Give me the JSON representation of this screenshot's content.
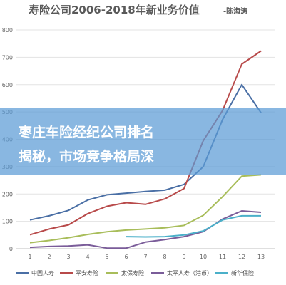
{
  "chart_data": {
    "type": "line",
    "title": "寿险公司2006-2018年新业务价值",
    "subtitle": "-陈海涛",
    "x": [
      1,
      2,
      3,
      4,
      5,
      6,
      7,
      8,
      9,
      10,
      11,
      12,
      13
    ],
    "ylim": [
      0,
      800
    ],
    "yticks": [
      0,
      100,
      200,
      300,
      400,
      500,
      600,
      700,
      800
    ],
    "grid": true,
    "legend_position": "bottom",
    "series": [
      {
        "name": "中国人寿",
        "color": "#4a6fa5",
        "values": [
          105,
          120,
          140,
          178,
          197,
          203,
          209,
          214,
          235,
          300,
          472,
          600,
          497
        ]
      },
      {
        "name": "平安寿险",
        "color": "#b84a4a",
        "values": [
          51,
          72,
          87,
          128,
          155,
          168,
          162,
          182,
          220,
          395,
          505,
          675,
          723
        ]
      },
      {
        "name": "太保寿险",
        "color": "#a8bd5a",
        "values": [
          22,
          30,
          40,
          52,
          62,
          68,
          72,
          76,
          85,
          122,
          190,
          265,
          270
        ]
      },
      {
        "name": "太平人寿（港币）",
        "color": "#7a5c99",
        "values": [
          5,
          8,
          10,
          14,
          2,
          2,
          24,
          33,
          44,
          62,
          108,
          138,
          133
        ]
      },
      {
        "name": "新华保险",
        "color": "#4bb0c9",
        "values": [
          null,
          null,
          null,
          null,
          null,
          44,
          43,
          44,
          50,
          65,
          105,
          120,
          120
        ]
      }
    ]
  },
  "overlay": {
    "line1": "枣庄车险经纪公司排名",
    "line2": "揭秘，市场竞争格局深"
  }
}
